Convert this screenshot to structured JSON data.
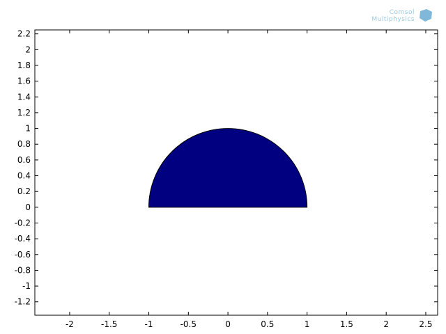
{
  "logo": {
    "line1": "Comsol",
    "line2": "Multiphysics"
  },
  "chart_data": {
    "type": "area",
    "title": "",
    "xlabel": "",
    "ylabel": "",
    "xlim": [
      -2.44,
      2.65
    ],
    "ylim": [
      -1.37,
      2.25
    ],
    "grid": false,
    "legend": "none",
    "x_ticks": [
      "-2",
      "-1.5",
      "-1",
      "-0.5",
      "0",
      "0.5",
      "1",
      "1.5",
      "2",
      "2.5"
    ],
    "y_ticks": [
      "-1.2",
      "-1",
      "-0.8",
      "-0.6",
      "-0.4",
      "-0.2",
      "0",
      "0.2",
      "0.4",
      "0.6",
      "0.8",
      "1",
      "1.2",
      "1.4",
      "1.6",
      "1.8",
      "2",
      "2.2"
    ],
    "shapes": [
      {
        "kind": "upper-half-disk",
        "center": [
          0,
          0
        ],
        "radius": 1,
        "fill": "#000080",
        "stroke": "#000000"
      }
    ]
  }
}
